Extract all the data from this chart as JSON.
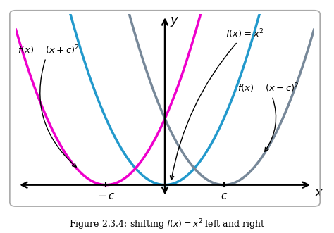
{
  "c": 1.5,
  "x_range": [
    -3.8,
    3.8
  ],
  "y_range": [
    -0.6,
    5.8
  ],
  "curve_color_center": "#2299CC",
  "curve_color_left": "#EE00CC",
  "curve_color_right": "#778899",
  "axis_color": "#000000",
  "bg_color": "#FFFFFF",
  "border_color": "#AAAAAA",
  "lw": 2.5,
  "c_label": 1.5
}
